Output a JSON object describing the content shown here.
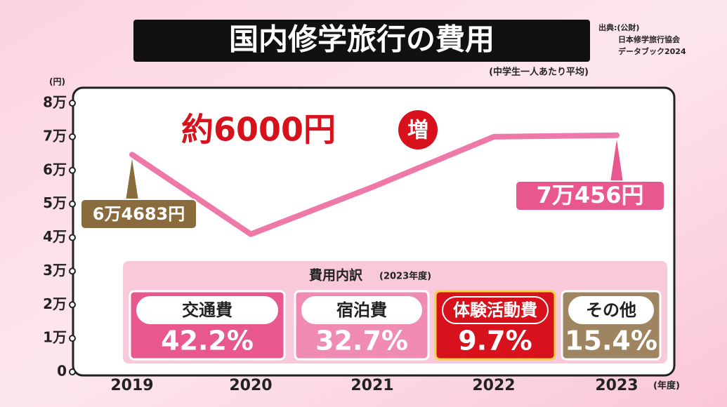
{
  "chart_data": {
    "type": "line",
    "title": "国内修学旅行の費用",
    "subtitle": "(中学生一人あたり平均)",
    "source": [
      "出典:(公財)",
      "日本修学旅行協会",
      "データブック2024"
    ],
    "y_label": "(円)",
    "x_label": "(年度)",
    "annotation": {
      "text": "約6000円",
      "badge": "増"
    },
    "categories": [
      "2019",
      "2020",
      "2021",
      "2022",
      "2023"
    ],
    "values": [
      64683,
      41000,
      55000,
      70000,
      70456
    ],
    "value_labels": [
      "6万4683円",
      null,
      null,
      null,
      "7万456円"
    ],
    "color": "#ee78a8",
    "ylim": [
      0,
      80000
    ],
    "yticks": [
      0,
      {
        "value": 10000,
        "label": "1万"
      },
      {
        "value": 20000,
        "label": "2万"
      },
      {
        "value": 30000,
        "label": "3万"
      },
      {
        "value": 40000,
        "label": "4万"
      },
      {
        "value": 50000,
        "label": "5万"
      },
      {
        "value": 60000,
        "label": "6万"
      },
      {
        "value": 70000,
        "label": "7万"
      },
      {
        "value": 80000,
        "label": "8万"
      }
    ],
    "breakdown": {
      "title": "費用内訳",
      "year": "(2023年度)",
      "items": [
        {
          "name": "交通費",
          "value": 42.2,
          "value_label": "42.2%",
          "color": "#e8588e"
        },
        {
          "name": "宿泊費",
          "value": 32.7,
          "value_label": "32.7%",
          "color": "#f08cb4"
        },
        {
          "name": "体験活動費",
          "value": 9.7,
          "value_label": "9.7%",
          "color": "#d8121c"
        },
        {
          "name": "その他",
          "value": 15.4,
          "value_label": "15.4%",
          "color": "#9e8460"
        }
      ]
    }
  }
}
